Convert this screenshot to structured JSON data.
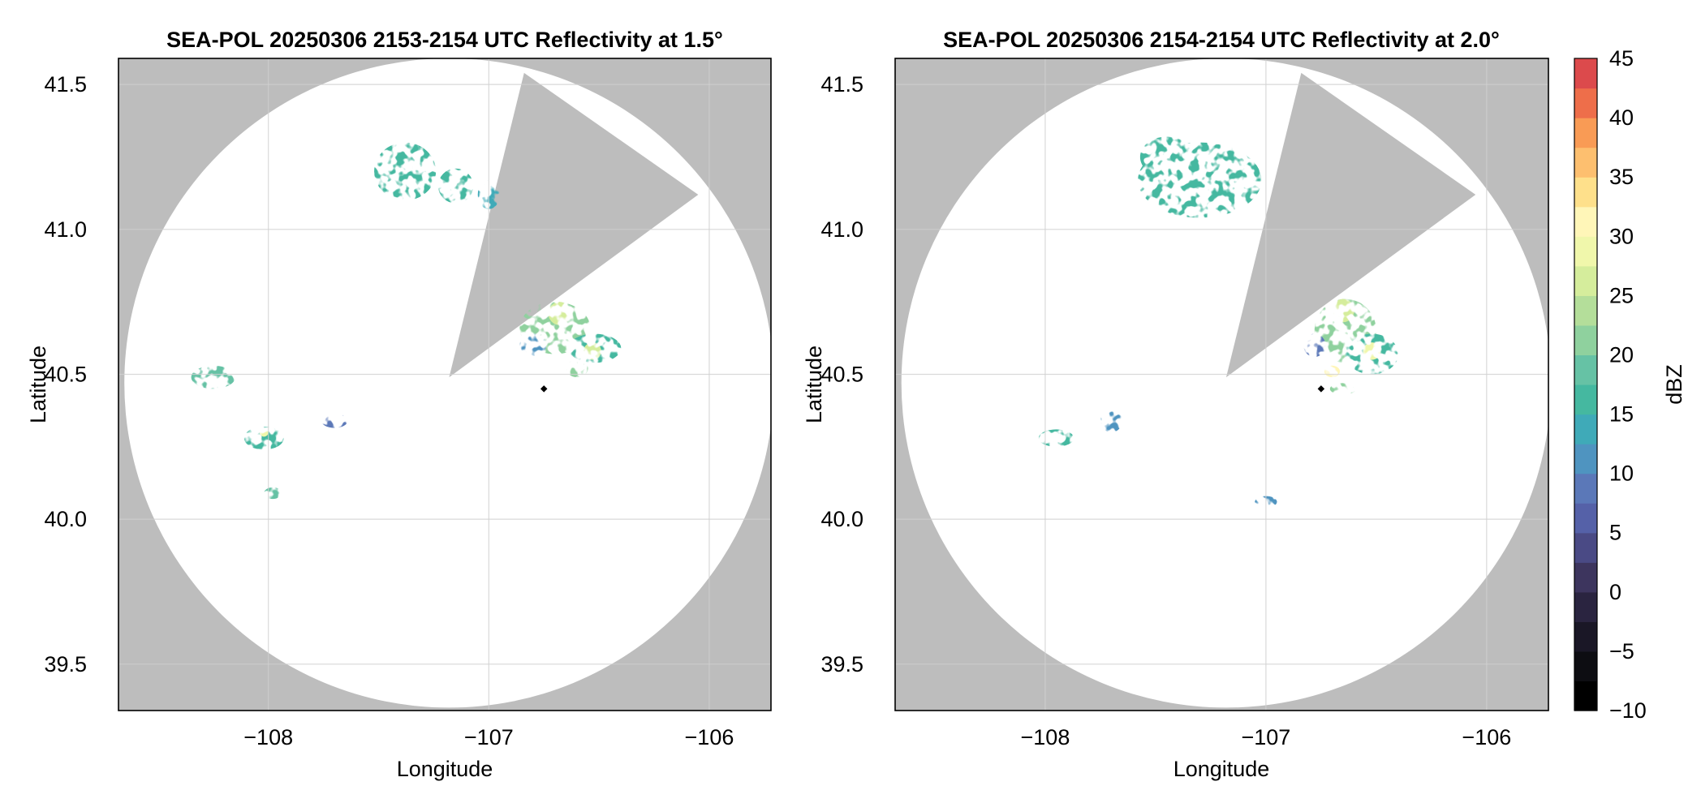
{
  "chart_data": [
    {
      "type": "heatmap",
      "title": "SEA-POL 20250306 2153-2154 UTC Reflectivity at 1.5°",
      "xlabel": "Longitude",
      "ylabel": "Latitude",
      "xlim": [
        -108.68,
        -105.72
      ],
      "ylim": [
        39.34,
        41.59
      ],
      "xticks": [
        -108,
        -107,
        -106
      ],
      "xtick_labels": [
        "−108",
        "−107",
        "−106"
      ],
      "yticks": [
        39.5,
        40.0,
        40.5,
        41.0,
        41.5
      ],
      "ytick_labels": [
        "39.5",
        "40.0",
        "40.5",
        "41.0",
        "41.5"
      ],
      "grid": true,
      "radar_site": {
        "lon": -106.75,
        "lat": 40.45
      },
      "coverage_center": {
        "lon": -107.18,
        "lat": 40.47
      },
      "blocked_sector": {
        "apex": {
          "lon": -107.18,
          "lat": 40.49
        },
        "edge1": {
          "lon": -106.84,
          "lat": 41.54
        },
        "edge2": {
          "lon": -106.05,
          "lat": 41.12
        }
      },
      "echo_cells": [
        {
          "lon": -107.38,
          "lat": 41.2,
          "rlon": 0.14,
          "rlat": 0.1,
          "dbz": 16
        },
        {
          "lon": -107.15,
          "lat": 41.15,
          "rlon": 0.08,
          "rlat": 0.06,
          "dbz": 15
        },
        {
          "lon": -107.0,
          "lat": 41.12,
          "rlon": 0.05,
          "rlat": 0.05,
          "dbz": 14
        },
        {
          "lon": -106.7,
          "lat": 40.66,
          "rlon": 0.16,
          "rlat": 0.09,
          "dbz": 20
        },
        {
          "lon": -106.68,
          "lat": 40.71,
          "rlon": 0.05,
          "rlat": 0.04,
          "dbz": 26
        },
        {
          "lon": -106.8,
          "lat": 40.6,
          "rlon": 0.06,
          "rlat": 0.04,
          "dbz": 10
        },
        {
          "lon": -106.52,
          "lat": 40.59,
          "rlon": 0.12,
          "rlat": 0.05,
          "dbz": 16
        },
        {
          "lon": -106.53,
          "lat": 40.58,
          "rlon": 0.04,
          "rlat": 0.03,
          "dbz": 27
        },
        {
          "lon": -106.6,
          "lat": 40.52,
          "rlon": 0.05,
          "rlat": 0.03,
          "dbz": 22
        },
        {
          "lon": -108.25,
          "lat": 40.49,
          "rlon": 0.1,
          "rlat": 0.04,
          "dbz": 18
        },
        {
          "lon": -108.02,
          "lat": 40.28,
          "rlon": 0.09,
          "rlat": 0.04,
          "dbz": 17
        },
        {
          "lon": -108.02,
          "lat": 40.3,
          "rlon": 0.02,
          "rlat": 0.015,
          "dbz": 29
        },
        {
          "lon": -107.7,
          "lat": 40.34,
          "rlon": 0.06,
          "rlat": 0.025,
          "dbz": 9
        },
        {
          "lon": -107.98,
          "lat": 40.09,
          "rlon": 0.04,
          "rlat": 0.02,
          "dbz": 18
        }
      ]
    },
    {
      "type": "heatmap",
      "title": "SEA-POL 20250306 2154-2154 UTC Reflectivity at 2.0°",
      "xlabel": "Longitude",
      "ylabel": "Latitude",
      "xlim": [
        -108.68,
        -105.72
      ],
      "ylim": [
        39.34,
        41.59
      ],
      "xticks": [
        -108,
        -107,
        -106
      ],
      "xtick_labels": [
        "−108",
        "−107",
        "−106"
      ],
      "yticks": [
        39.5,
        40.0,
        40.5,
        41.0,
        41.5
      ],
      "ytick_labels": [
        "39.5",
        "40.0",
        "40.5",
        "41.0",
        "41.5"
      ],
      "grid": true,
      "radar_site": {
        "lon": -106.75,
        "lat": 40.45
      },
      "coverage_center": {
        "lon": -107.18,
        "lat": 40.47
      },
      "blocked_sector": {
        "apex": {
          "lon": -107.18,
          "lat": 40.49
        },
        "edge1": {
          "lon": -106.84,
          "lat": 41.54
        },
        "edge2": {
          "lon": -106.05,
          "lat": 41.12
        }
      },
      "echo_cells": [
        {
          "lon": -107.3,
          "lat": 41.17,
          "rlon": 0.28,
          "rlat": 0.13,
          "dbz": 16
        },
        {
          "lon": -107.45,
          "lat": 41.25,
          "rlon": 0.12,
          "rlat": 0.07,
          "dbz": 15
        },
        {
          "lon": -106.64,
          "lat": 40.65,
          "rlon": 0.14,
          "rlat": 0.11,
          "dbz": 20
        },
        {
          "lon": -106.65,
          "lat": 40.72,
          "rlon": 0.05,
          "rlat": 0.04,
          "dbz": 27
        },
        {
          "lon": -106.52,
          "lat": 40.57,
          "rlon": 0.12,
          "rlat": 0.07,
          "dbz": 17
        },
        {
          "lon": -106.52,
          "lat": 40.58,
          "rlon": 0.04,
          "rlat": 0.03,
          "dbz": 28
        },
        {
          "lon": -106.7,
          "lat": 40.51,
          "rlon": 0.035,
          "rlat": 0.02,
          "dbz": 32
        },
        {
          "lon": -106.78,
          "lat": 40.6,
          "rlon": 0.05,
          "rlat": 0.04,
          "dbz": 9
        },
        {
          "lon": -106.65,
          "lat": 40.45,
          "rlon": 0.06,
          "rlat": 0.02,
          "dbz": 22
        },
        {
          "lon": -107.7,
          "lat": 40.34,
          "rlon": 0.05,
          "rlat": 0.04,
          "dbz": 10
        },
        {
          "lon": -107.95,
          "lat": 40.28,
          "rlon": 0.08,
          "rlat": 0.03,
          "dbz": 15
        },
        {
          "lon": -107.0,
          "lat": 40.06,
          "rlon": 0.05,
          "rlat": 0.02,
          "dbz": 10
        }
      ]
    }
  ],
  "colorbar": {
    "label": "dBZ",
    "range": [
      -10,
      45
    ],
    "step": 2.5,
    "ticks": [
      -10,
      -5,
      0,
      5,
      10,
      15,
      20,
      25,
      30,
      35,
      40,
      45
    ],
    "tick_labels": [
      "−10",
      "−5",
      "0",
      "5",
      "10",
      "15",
      "20",
      "25",
      "30",
      "35",
      "40",
      "45"
    ],
    "colors": [
      "#000000",
      "#0d0d12",
      "#1a1726",
      "#2a2440",
      "#3d355e",
      "#4a4a85",
      "#5561a8",
      "#5b78b8",
      "#4f94c0",
      "#3faab8",
      "#45b8a0",
      "#66c2a5",
      "#8fd19e",
      "#b4de9a",
      "#d5ed9c",
      "#f0f7ab",
      "#fff6b8",
      "#fee08b",
      "#fdbf6f",
      "#f99b55",
      "#ee6e4a",
      "#dc4a4c",
      "#c2223f",
      "#a40f42",
      "#c22b6e",
      "#dd4c94",
      "#ea7bb6",
      "#f2a8cf",
      "#d2a5d0",
      "#a97cc2",
      "#8a55a8",
      "#6a2d82",
      "#4a0f5e"
    ]
  },
  "colors": {
    "outside_coverage": "#bdbdbd",
    "coverage": "#ffffff",
    "grid": "#cfcfcf",
    "radar_marker": "#000000"
  }
}
